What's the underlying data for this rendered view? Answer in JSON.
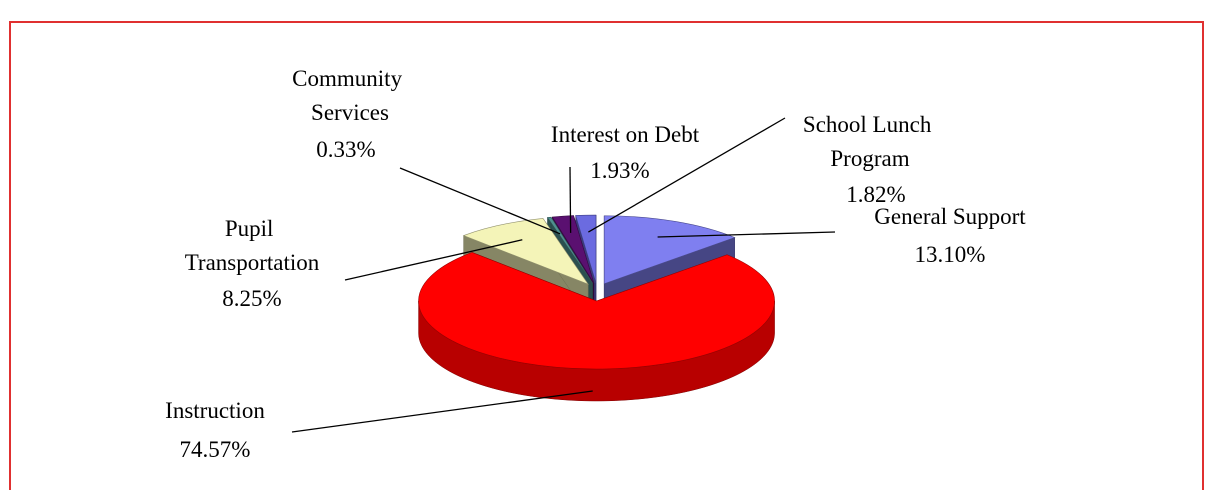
{
  "chart_data": {
    "type": "pie3d",
    "categories": [
      "General Support",
      "Instruction",
      "Pupil Transportation",
      "Community Services",
      "Interest on Debt",
      "School Lunch Program"
    ],
    "values": [
      13.1,
      74.57,
      8.25,
      0.33,
      1.93,
      1.82
    ],
    "value_labels": [
      "13.10%",
      "74.57%",
      "8.25%",
      "0.33%",
      "1.93%",
      "1.82%"
    ],
    "colors": [
      "#7f7ff0",
      "#ff0000",
      "#f4f4b8",
      "#4f8f8f",
      "#5a1070",
      "#6b6be0"
    ]
  }
}
